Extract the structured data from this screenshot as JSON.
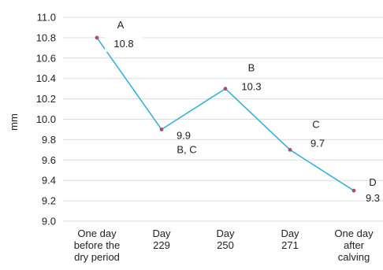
{
  "chart_data": {
    "type": "line",
    "title": "",
    "xlabel": "",
    "ylabel": "mm",
    "ylim": [
      9.0,
      11.0
    ],
    "y_ticks": [
      "9.0",
      "9.2",
      "9.4",
      "9.6",
      "9.8",
      "10.0",
      "10.2",
      "10.4",
      "10.6",
      "10.8",
      "11.0"
    ],
    "grid": true,
    "legend": "none",
    "categories": [
      [
        "One day",
        "before the",
        "dry period"
      ],
      [
        "Day",
        "229"
      ],
      [
        "Day",
        "250"
      ],
      [
        "Day",
        "271"
      ],
      [
        "One day",
        "after",
        "calving"
      ]
    ],
    "series": [
      {
        "values": [
          10.8,
          9.9,
          10.3,
          9.7,
          9.3
        ],
        "letters": [
          "A",
          "B, C",
          "B",
          "C",
          "D"
        ],
        "value_labels": [
          "10.8",
          "9.9",
          "10.3",
          "9.7",
          "9.3"
        ]
      }
    ],
    "colors": {
      "line": "#3ab0d8",
      "marker": "#b04a6a",
      "grid": "#dcdcdc"
    }
  }
}
